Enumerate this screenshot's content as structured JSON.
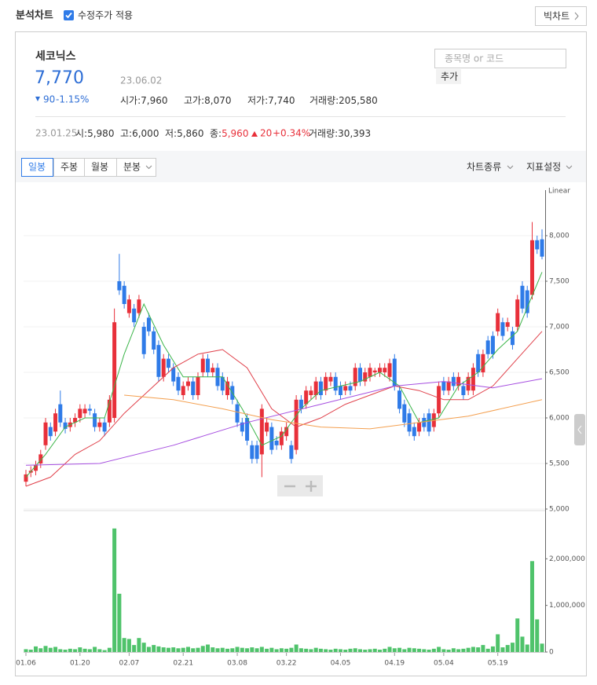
{
  "header": {
    "title": "분석차트",
    "checkbox_label": "수정주가 적용",
    "big_chart_button": "빅차트"
  },
  "stock": {
    "name": "세코닉스",
    "price": "7,770",
    "date": "23.06.02",
    "change": "90",
    "change_rate": "-1.15%",
    "stats": [
      {
        "label": "시가:",
        "value": "7,960"
      },
      {
        "label": "고가:",
        "value": "8,070"
      },
      {
        "label": "저가:",
        "value": "7,740"
      },
      {
        "label": "거래량:",
        "value": "205,580"
      }
    ],
    "search_placeholder": "종목명 or 코드",
    "add_button": "추가"
  },
  "hover_info": {
    "date": "23.01.25",
    "items": [
      {
        "label": "시:",
        "value": "5,980"
      },
      {
        "label": "고:",
        "value": "6,000"
      },
      {
        "label": "저:",
        "value": "5,860"
      },
      {
        "label": "종:",
        "value": "5,960"
      }
    ],
    "change": "20",
    "change_rate": "+0.34%",
    "volume_label": "거래량:",
    "volume_value": "30,393"
  },
  "toolbar": {
    "period_tabs": [
      "일봉",
      "주봉",
      "월봉",
      "분봉"
    ],
    "chart_type": "차트종류",
    "indicator": "지표설정"
  },
  "chart_data": [
    {
      "type": "candlestick",
      "scale_label": "Linear",
      "grid": true,
      "up_color": "#e8303a",
      "down_color": "#2f7be8",
      "categories": [
        "01.06",
        null,
        null,
        null,
        null,
        null,
        null,
        null,
        null,
        null,
        null,
        "01.20",
        null,
        null,
        null,
        null,
        null,
        null,
        null,
        null,
        null,
        "02.07",
        null,
        null,
        null,
        null,
        null,
        null,
        null,
        null,
        null,
        null,
        "02.21",
        null,
        null,
        null,
        null,
        null,
        null,
        null,
        null,
        null,
        null,
        "03.08",
        null,
        null,
        null,
        null,
        null,
        null,
        null,
        null,
        null,
        "03.22",
        null,
        null,
        null,
        null,
        null,
        null,
        null,
        null,
        null,
        null,
        "04.05",
        null,
        null,
        null,
        null,
        null,
        null,
        null,
        null,
        null,
        null,
        "04.19",
        null,
        null,
        null,
        null,
        null,
        null,
        null,
        null,
        null,
        "05.04",
        null,
        null,
        null,
        null,
        null,
        null,
        null,
        null,
        null,
        null,
        "05.19",
        null,
        null,
        null,
        null,
        null,
        null,
        null,
        null,
        null
      ],
      "open": [
        5300,
        5400,
        5420,
        5500,
        5700,
        5900,
        5850,
        6150,
        5950,
        5900,
        5950,
        6000,
        6050,
        6100,
        6050,
        5900,
        5950,
        5950,
        6000,
        7500,
        7450,
        7150,
        7200,
        7150,
        7000,
        7100,
        6950,
        6800,
        6450,
        6650,
        6550,
        6450,
        6250,
        6350,
        6400,
        6250,
        6500,
        6650,
        6500,
        6550,
        6450,
        6250,
        6350,
        6150,
        5950,
        6000,
        5700,
        5700,
        5600,
        5850,
        5900,
        5750,
        5700,
        5800,
        5700,
        5650,
        6200,
        6150,
        6250,
        6250,
        6400,
        6300,
        6400,
        6450,
        6350,
        6300,
        6350,
        6350,
        6550,
        6400,
        6450,
        6500,
        6500,
        6500,
        6450,
        6650,
        6300,
        6150,
        6050,
        5900,
        5850,
        6000,
        6050,
        5900,
        6050,
        6400,
        6300,
        6450,
        6350,
        6350,
        6300,
        6300,
        6700,
        6500,
        6850,
        6900,
        6950,
        7050,
        7000,
        6950,
        7000,
        7450,
        7400,
        7350,
        7950,
        7960
      ],
      "high": [
        5430,
        5470,
        5530,
        5650,
        6000,
        5950,
        6100,
        6300,
        6000,
        6000,
        6050,
        6150,
        6150,
        6150,
        6100,
        6000,
        6000,
        6250,
        7200,
        7800,
        7500,
        7350,
        7250,
        7350,
        7050,
        7150,
        7000,
        6850,
        6700,
        6700,
        6600,
        6500,
        6400,
        6450,
        6450,
        6500,
        6700,
        6700,
        6600,
        6600,
        6500,
        6450,
        6400,
        6200,
        6000,
        6050,
        5750,
        5750,
        6150,
        6000,
        5950,
        5800,
        5900,
        5950,
        5750,
        6250,
        6250,
        6350,
        6350,
        6450,
        6450,
        6500,
        6500,
        6500,
        6400,
        6400,
        6400,
        6600,
        6600,
        6550,
        6600,
        6550,
        6600,
        6600,
        6650,
        6700,
        6350,
        6200,
        6100,
        5950,
        6000,
        6050,
        6100,
        6100,
        6400,
        6450,
        6450,
        6500,
        6500,
        6400,
        6500,
        6600,
        6750,
        6750,
        6900,
        6950,
        7200,
        7100,
        7100,
        7000,
        7350,
        7500,
        7450,
        8150,
        8000,
        8070
      ],
      "low": [
        5250,
        5350,
        5370,
        5450,
        5650,
        5750,
        5800,
        5900,
        5830,
        5850,
        5900,
        5950,
        6000,
        6030,
        5850,
        5850,
        5800,
        5900,
        5950,
        7350,
        7200,
        7100,
        7000,
        7100,
        6650,
        6900,
        6700,
        6400,
        6400,
        6500,
        6350,
        6250,
        6200,
        6300,
        6200,
        6200,
        6450,
        6450,
        6450,
        6300,
        6250,
        6200,
        6150,
        5900,
        5800,
        5700,
        5500,
        5500,
        5350,
        5800,
        5600,
        5650,
        5650,
        5750,
        5500,
        5600,
        6050,
        6100,
        6200,
        6200,
        6200,
        6250,
        6350,
        6250,
        6200,
        6250,
        6250,
        6300,
        6350,
        6350,
        6400,
        6450,
        6450,
        6450,
        6400,
        6300,
        6050,
        5900,
        5800,
        5750,
        5800,
        5850,
        5800,
        5850,
        6000,
        6250,
        6250,
        6300,
        6300,
        6200,
        6250,
        6250,
        6450,
        6450,
        6650,
        6650,
        6900,
        6850,
        6950,
        6750,
        6950,
        7150,
        7100,
        7300,
        7800,
        7740
      ],
      "close": [
        5380,
        5420,
        5480,
        5600,
        5950,
        5800,
        6050,
        5950,
        5880,
        5950,
        6000,
        6100,
        6100,
        6080,
        5900,
        5950,
        5850,
        6200,
        7050,
        7400,
        7250,
        7300,
        7050,
        7300,
        6700,
        6950,
        6750,
        6450,
        6650,
        6550,
        6400,
        6300,
        6350,
        6400,
        6250,
        6450,
        6650,
        6500,
        6550,
        6350,
        6300,
        6400,
        6200,
        5950,
        5850,
        5750,
        5550,
        5550,
        6100,
        5950,
        5650,
        5700,
        5850,
        5900,
        5550,
        6200,
        6100,
        6300,
        6300,
        6400,
        6250,
        6450,
        6450,
        6300,
        6250,
        6350,
        6300,
        6550,
        6400,
        6500,
        6550,
        6520,
        6550,
        6550,
        6600,
        6350,
        6100,
        5950,
        5850,
        5800,
        5950,
        5900,
        5850,
        6050,
        6350,
        6300,
        6400,
        6350,
        6450,
        6250,
        6450,
        6550,
        6500,
        6700,
        6700,
        6700,
        7150,
        6900,
        7050,
        6800,
        7300,
        7200,
        7150,
        7950,
        7850,
        7770
      ],
      "ma_lines": [
        {
          "color": "#3cb54a",
          "x": [
            0,
            4,
            8,
            12,
            16,
            20,
            24,
            28,
            32,
            36,
            40,
            44,
            48,
            52,
            56,
            60,
            64,
            68,
            72,
            76,
            80,
            84,
            88,
            92,
            96,
            100,
            105
          ],
          "values": [
            5350,
            5600,
            5900,
            6000,
            6000,
            6700,
            7250,
            6800,
            6450,
            6450,
            6450,
            6100,
            5700,
            5800,
            6100,
            6300,
            6350,
            6400,
            6500,
            6350,
            5950,
            6000,
            6350,
            6500,
            6750,
            6950,
            7600
          ]
        },
        {
          "color": "#e0404a",
          "x": [
            0,
            5,
            10,
            15,
            20,
            25,
            30,
            35,
            40,
            45,
            50,
            55,
            60,
            65,
            70,
            75,
            80,
            85,
            90,
            95,
            100,
            105
          ],
          "values": [
            5250,
            5350,
            5600,
            5750,
            6050,
            6300,
            6550,
            6700,
            6750,
            6550,
            6100,
            5900,
            6000,
            6150,
            6250,
            6350,
            6300,
            6200,
            6200,
            6350,
            6650,
            6950
          ]
        },
        {
          "color": "#a64ee0",
          "x": [
            0,
            15,
            30,
            45,
            60,
            75,
            85,
            95,
            105
          ],
          "values": [
            5480,
            5500,
            5700,
            5950,
            6150,
            6350,
            6400,
            6330,
            6430
          ]
        },
        {
          "color": "#f4a050",
          "x": [
            20,
            30,
            40,
            50,
            60,
            70,
            80,
            90,
            105
          ],
          "values": [
            6250,
            6200,
            6100,
            5980,
            5900,
            5880,
            5950,
            6020,
            6200
          ]
        }
      ],
      "ylim": [
        5000,
        8500
      ],
      "yticks": [
        {
          "value": 5000,
          "label": "5,000"
        },
        {
          "value": 5500,
          "label": "5,500"
        },
        {
          "value": 6000,
          "label": "6,000"
        },
        {
          "value": 6500,
          "label": "6,500"
        },
        {
          "value": 7000,
          "label": "7,000"
        },
        {
          "value": 7500,
          "label": "7,500"
        },
        {
          "value": 8000,
          "label": "8,000"
        }
      ]
    },
    {
      "type": "bar",
      "color": "#4fc36b",
      "values": [
        60000,
        50000,
        120000,
        80000,
        130000,
        90000,
        110000,
        60000,
        50000,
        70000,
        60000,
        100000,
        70000,
        60000,
        110000,
        60000,
        40000,
        90000,
        2650000,
        1250000,
        300000,
        280000,
        150000,
        300000,
        200000,
        110000,
        150000,
        120000,
        100000,
        90000,
        100000,
        80000,
        90000,
        110000,
        80000,
        90000,
        130000,
        160000,
        100000,
        80000,
        90000,
        70000,
        80000,
        110000,
        90000,
        80000,
        100000,
        80000,
        110000,
        70000,
        90000,
        60000,
        80000,
        70000,
        90000,
        160000,
        80000,
        70000,
        60000,
        90000,
        70000,
        60000,
        50000,
        70000,
        60000,
        50000,
        70000,
        80000,
        60000,
        50000,
        60000,
        70000,
        50000,
        70000,
        110000,
        80000,
        90000,
        60000,
        90000,
        80000,
        70000,
        60000,
        50000,
        70000,
        110000,
        60000,
        50000,
        80000,
        60000,
        70000,
        90000,
        110000,
        100000,
        150000,
        70000,
        120000,
        380000,
        100000,
        150000,
        200000,
        720000,
        330000,
        160000,
        1950000,
        700000,
        180000
      ],
      "ylim": [
        0,
        3000000
      ],
      "yticks": [
        0,
        {
          "value": 1000000,
          "label": "1,000,000"
        },
        {
          "value": 2000000,
          "label": "2,000,000"
        }
      ]
    }
  ]
}
